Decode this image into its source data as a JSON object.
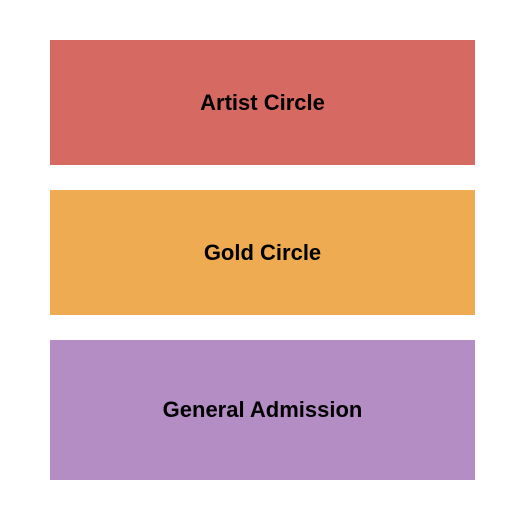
{
  "seating_chart": {
    "type": "infographic",
    "background_color": "#ffffff",
    "sections": [
      {
        "label": "Artist Circle",
        "background_color": "#d66962",
        "text_color": "#000000",
        "font_size": 22,
        "font_weight": "bold"
      },
      {
        "label": "Gold Circle",
        "background_color": "#eeab51",
        "text_color": "#000000",
        "font_size": 22,
        "font_weight": "bold"
      },
      {
        "label": "General Admission",
        "background_color": "#b58dc5",
        "text_color": "#000000",
        "font_size": 22,
        "font_weight": "bold"
      }
    ]
  }
}
